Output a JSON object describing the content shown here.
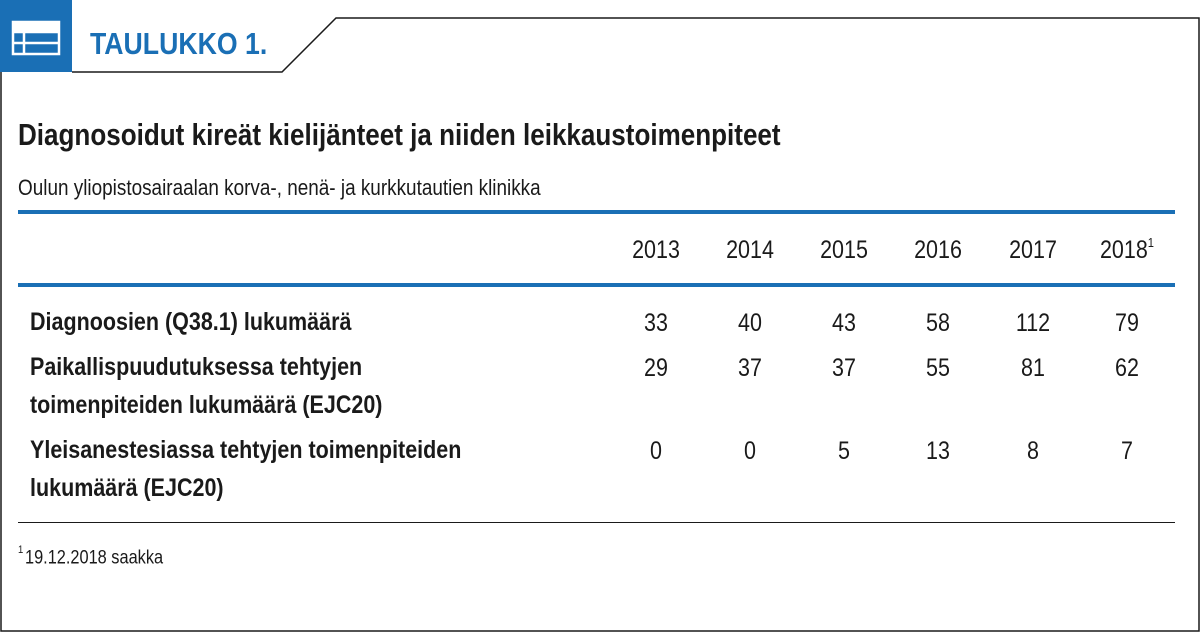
{
  "header": {
    "label": "TAULUKKO 1.",
    "icon": "table-list-icon",
    "accent_color": "#1a6fb5"
  },
  "title": "Diagnosoidut kireät kielijänteet ja niiden leikkaustoimenpiteet",
  "subtitle": "Oulun yliopistosairaalan korva-, nenä- ja kurkkutautien klinikka",
  "table": {
    "columns": [
      "2013",
      "2014",
      "2015",
      "2016",
      "2017",
      "2018"
    ],
    "last_column_footnote_mark": "1",
    "rows": [
      {
        "label_lines": [
          "Diagnoosien (Q38.1) lukumäärä"
        ],
        "values": [
          "33",
          "40",
          "43",
          "58",
          "112",
          "79"
        ]
      },
      {
        "label_lines": [
          "Paikallispuudutuksessa tehtyjen",
          "toimenpiteiden lukumäärä (EJC20)"
        ],
        "values": [
          "29",
          "37",
          "37",
          "55",
          "81",
          "62"
        ]
      },
      {
        "label_lines": [
          "Yleisanestesiassa tehtyjen toimenpiteiden",
          "lukumäärä (EJC20)"
        ],
        "values": [
          "0",
          "0",
          "5",
          "13",
          "8",
          "7"
        ]
      }
    ]
  },
  "footnote": {
    "mark": "1",
    "text": "19.12.2018 saakka"
  }
}
